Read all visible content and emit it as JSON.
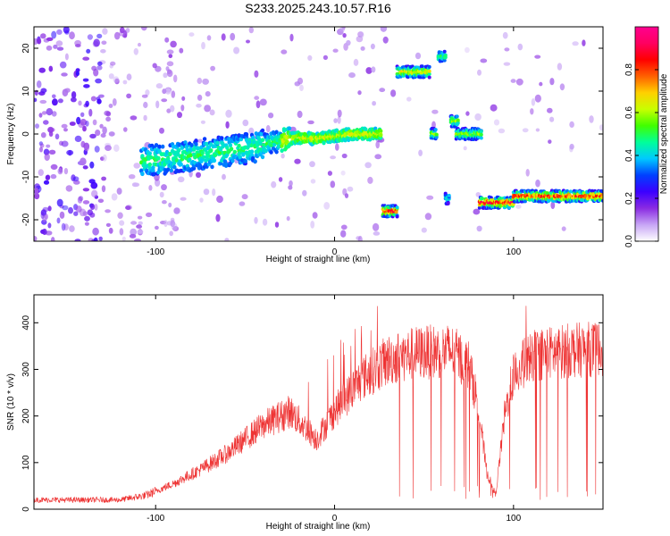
{
  "title": "S233.2025.243.10.57.R16",
  "chart_data": [
    {
      "type": "heatmap",
      "name": "spectrogram",
      "xlabel": "Height of straight line (km)",
      "ylabel": "Frequency (Hz)",
      "xlim": [
        -168,
        150
      ],
      "ylim": [
        -25,
        25
      ],
      "x_ticks": [
        -100,
        0,
        100
      ],
      "y_ticks": [
        -20,
        -10,
        0,
        10,
        20
      ],
      "colorbar": {
        "label": "Normalized spectral amplitude",
        "range": [
          0,
          1
        ],
        "ticks": [
          0.0,
          0.2,
          0.4,
          0.6,
          0.8
        ],
        "colors": [
          "#ffffff",
          "#c7a5f5",
          "#8a2be2",
          "#3b00ff",
          "#0040ff",
          "#00c8ff",
          "#00ff9a",
          "#40ff00",
          "#c8ff00",
          "#ffd000",
          "#ff6000",
          "#ff0000",
          "#ff0060",
          "#ff0090"
        ]
      },
      "ridge": [
        {
          "x": -108,
          "f": -6.5
        },
        {
          "x": -100,
          "f": -6
        },
        {
          "x": -90,
          "f": -5.5
        },
        {
          "x": -80,
          "f": -5
        },
        {
          "x": -70,
          "f": -4.5
        },
        {
          "x": -60,
          "f": -4
        },
        {
          "x": -50,
          "f": -3.5
        },
        {
          "x": -40,
          "f": -2.5
        },
        {
          "x": -30,
          "f": -1.5
        },
        {
          "x": -20,
          "f": -0.8
        },
        {
          "x": -10,
          "f": -1.2
        },
        {
          "x": 0,
          "f": -0.5
        },
        {
          "x": 10,
          "f": 0
        },
        {
          "x": 20,
          "f": 0
        },
        {
          "x": 26,
          "f": 0
        }
      ],
      "segments": [
        {
          "x0": 27,
          "x1": 35,
          "f": -18,
          "peak": 0.9
        },
        {
          "x0": 35,
          "x1": 53,
          "f": 14.5,
          "peak": 0.7
        },
        {
          "x0": 54,
          "x1": 57,
          "f": 0,
          "peak": 0.6
        },
        {
          "x0": 58,
          "x1": 62,
          "f": 18,
          "peak": 0.5
        },
        {
          "x0": 62,
          "x1": 64,
          "f": -15,
          "peak": 0.4
        },
        {
          "x0": 65,
          "x1": 69,
          "f": 3,
          "peak": 0.6
        },
        {
          "x0": 68,
          "x1": 82,
          "f": 0,
          "peak": 0.6
        },
        {
          "x0": 81,
          "x1": 100,
          "f": -16,
          "peak": 0.9
        },
        {
          "x0": 100,
          "x1": 150,
          "f": -14.5,
          "peak": 0.85
        }
      ]
    },
    {
      "type": "line",
      "name": "snr",
      "xlabel": "Height of straight line (km)",
      "ylabel": "SNR (10 * v/v)",
      "xlim": [
        -168,
        150
      ],
      "ylim": [
        0,
        460
      ],
      "x_ticks": [
        -100,
        0,
        100
      ],
      "y_ticks": [
        0,
        100,
        200,
        300,
        400
      ],
      "color": "#ee3333",
      "envelope": [
        {
          "x": -168,
          "y": 20
        },
        {
          "x": -120,
          "y": 20
        },
        {
          "x": -105,
          "y": 30
        },
        {
          "x": -90,
          "y": 55
        },
        {
          "x": -75,
          "y": 85
        },
        {
          "x": -60,
          "y": 120
        },
        {
          "x": -40,
          "y": 180
        },
        {
          "x": -25,
          "y": 210
        },
        {
          "x": -10,
          "y": 150
        },
        {
          "x": 0,
          "y": 210
        },
        {
          "x": 15,
          "y": 280
        },
        {
          "x": 30,
          "y": 320
        },
        {
          "x": 45,
          "y": 335
        },
        {
          "x": 65,
          "y": 340
        },
        {
          "x": 75,
          "y": 310
        },
        {
          "x": 80,
          "y": 230
        },
        {
          "x": 85,
          "y": 80
        },
        {
          "x": 90,
          "y": 30
        },
        {
          "x": 95,
          "y": 200
        },
        {
          "x": 100,
          "y": 290
        },
        {
          "x": 110,
          "y": 330
        },
        {
          "x": 130,
          "y": 340
        },
        {
          "x": 150,
          "y": 345
        }
      ]
    }
  ]
}
